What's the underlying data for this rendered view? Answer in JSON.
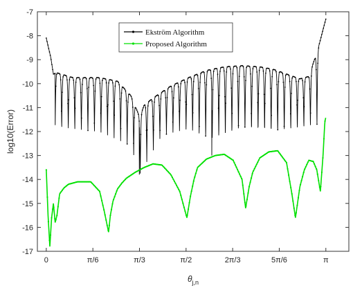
{
  "chart_data": {
    "type": "line",
    "title": "",
    "xlabel": "θ_j,n",
    "ylabel": "log10(Error)",
    "xlim": [
      -0.1,
      3.4
    ],
    "ylim": [
      -17,
      -7
    ],
    "xticks": [
      0,
      0.5236,
      1.0472,
      1.5708,
      2.0944,
      2.618,
      3.1416
    ],
    "xtick_labels": [
      "0",
      "π/6",
      "π/3",
      "π/2",
      "2π/3",
      "5π/6",
      "π"
    ],
    "yticks": [
      -17,
      -16,
      -15,
      -14,
      -13,
      -12,
      -11,
      -10,
      -9,
      -8,
      -7
    ],
    "ytick_labels": [
      "-17",
      "-16",
      "-15",
      "-14",
      "-13",
      "-12",
      "-11",
      "-10",
      "-9",
      "-8",
      "-7"
    ],
    "grid": false,
    "legend_position": "top-center",
    "series": [
      {
        "name": "Ekström Algorithm",
        "color": "#000000",
        "marker": "dot",
        "envelope": {
          "x": [
            0.0,
            0.05,
            0.08,
            0.12,
            0.3,
            0.6,
            0.8,
            0.95,
            1.05,
            1.1,
            1.2,
            1.4,
            1.6,
            1.8,
            2.0,
            2.2,
            2.4,
            2.55,
            2.7,
            2.85,
            2.95,
            3.05,
            3.1416
          ],
          "y": [
            -8.1,
            -8.9,
            -9.6,
            -9.55,
            -9.75,
            -9.75,
            -9.9,
            -10.5,
            -11.4,
            -10.9,
            -10.6,
            -10.1,
            -9.75,
            -9.45,
            -9.3,
            -9.25,
            -9.3,
            -9.4,
            -9.6,
            -9.8,
            -9.7,
            -8.6,
            -7.3
          ]
        },
        "lobe_count": 40,
        "dip_depth": [
          {
            "x": 0.08,
            "y": -11.9
          },
          {
            "x": 0.2,
            "y": -12.0
          },
          {
            "x": 0.6,
            "y": -12.1
          },
          {
            "x": 0.95,
            "y": -12.6
          },
          {
            "x": 1.05,
            "y": -13.8
          },
          {
            "x": 1.3,
            "y": -12.2
          },
          {
            "x": 1.6,
            "y": -12.0
          },
          {
            "x": 1.85,
            "y": -12.5
          },
          {
            "x": 2.2,
            "y": -12.1
          },
          {
            "x": 2.6,
            "y": -12.2
          },
          {
            "x": 2.95,
            "y": -11.9
          }
        ],
        "spikes": [
          {
            "x": 1.045,
            "y": -13.8
          },
          {
            "x": 1.86,
            "y": -13.0
          }
        ]
      },
      {
        "name": "Proposed Algorithm",
        "color": "#00e000",
        "marker": "dot",
        "x": [
          0.0,
          0.02,
          0.04,
          0.06,
          0.08,
          0.1,
          0.12,
          0.15,
          0.2,
          0.25,
          0.3,
          0.35,
          0.4,
          0.5,
          0.6,
          0.65,
          0.7,
          0.72,
          0.75,
          0.8,
          0.85,
          0.9,
          1.0,
          1.1,
          1.2,
          1.3,
          1.4,
          1.5,
          1.58,
          1.62,
          1.66,
          1.7,
          1.8,
          1.9,
          2.0,
          2.1,
          2.2,
          2.24,
          2.28,
          2.32,
          2.4,
          2.5,
          2.6,
          2.7,
          2.76,
          2.8,
          2.85,
          2.9,
          2.95,
          3.0,
          3.04,
          3.08,
          3.11,
          3.13,
          3.1416
        ],
        "y": [
          -13.6,
          -15.5,
          -16.8,
          -15.6,
          -15.0,
          -15.8,
          -15.5,
          -14.6,
          -14.35,
          -14.2,
          -14.15,
          -14.1,
          -14.1,
          -14.1,
          -14.5,
          -15.3,
          -16.2,
          -15.5,
          -14.9,
          -14.4,
          -14.15,
          -13.95,
          -13.7,
          -13.5,
          -13.35,
          -13.4,
          -13.8,
          -14.5,
          -15.6,
          -14.7,
          -14.0,
          -13.5,
          -13.15,
          -13.0,
          -12.95,
          -13.2,
          -14.0,
          -15.2,
          -14.3,
          -13.7,
          -13.1,
          -12.85,
          -12.8,
          -13.3,
          -14.6,
          -15.6,
          -14.3,
          -13.6,
          -13.2,
          -13.25,
          -13.6,
          -14.5,
          -13.0,
          -11.6,
          -11.4
        ]
      }
    ]
  }
}
